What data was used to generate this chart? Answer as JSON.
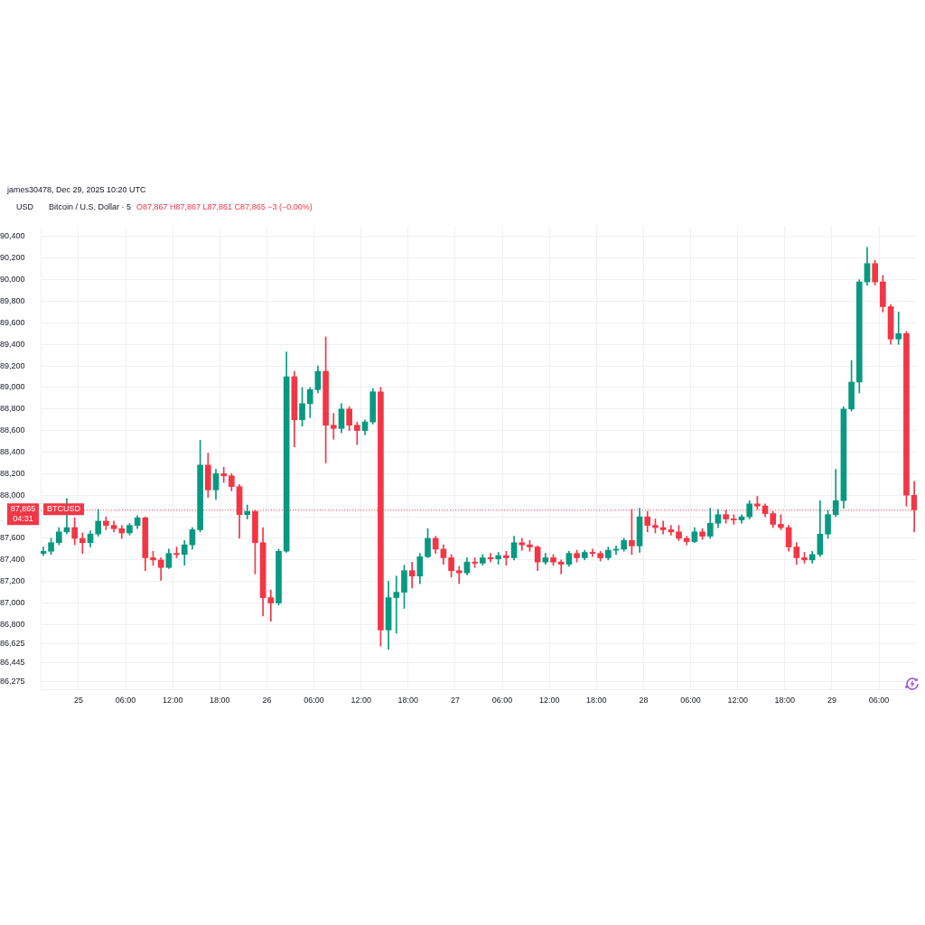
{
  "chart_data": {
    "type": "candlestick",
    "title": "Bitcoin / U.S. Dollar · 5",
    "ylabel": "USD",
    "annotations": [
      "james30478, Dec 29, 2025 10:20 UTC",
      "O87,867 H87,867 L87,861 C87,865 −3 (−0.00%)",
      "87,865",
      "04:31"
    ],
    "x": [
      "2025-12-24T19:30",
      "2025-12-24T20:30",
      "2025-12-24T21:30",
      "2025-12-24T22:30",
      "2025-12-24T23:30",
      "2025-12-25T00:30",
      "2025-12-25T01:30",
      "2025-12-25T02:30",
      "2025-12-25T03:30",
      "2025-12-25T04:30",
      "2025-12-25T05:30",
      "2025-12-25T06:30",
      "2025-12-25T07:30",
      "2025-12-25T08:30",
      "2025-12-25T09:30",
      "2025-12-25T10:30",
      "2025-12-25T11:30",
      "2025-12-25T12:30",
      "2025-12-25T13:30",
      "2025-12-25T14:30",
      "2025-12-25T15:30",
      "2025-12-25T16:30",
      "2025-12-25T17:30",
      "2025-12-25T18:30",
      "2025-12-25T19:30",
      "2025-12-25T20:30",
      "2025-12-25T21:30",
      "2025-12-25T22:30",
      "2025-12-25T23:30",
      "2025-12-26T00:30",
      "2025-12-26T01:30",
      "2025-12-26T02:30",
      "2025-12-26T03:30",
      "2025-12-26T04:30",
      "2025-12-26T05:30",
      "2025-12-26T06:30",
      "2025-12-26T07:30",
      "2025-12-26T08:30",
      "2025-12-26T09:30",
      "2025-12-26T10:30",
      "2025-12-26T11:30",
      "2025-12-26T12:30",
      "2025-12-26T13:30",
      "2025-12-26T14:30",
      "2025-12-26T15:30",
      "2025-12-26T16:30",
      "2025-12-26T17:30",
      "2025-12-26T18:30",
      "2025-12-26T19:30",
      "2025-12-26T20:30",
      "2025-12-26T21:30",
      "2025-12-26T22:30",
      "2025-12-26T23:30",
      "2025-12-27T00:30",
      "2025-12-27T01:30",
      "2025-12-27T02:30",
      "2025-12-27T03:30",
      "2025-12-27T04:30",
      "2025-12-27T05:30",
      "2025-12-27T06:30",
      "2025-12-27T07:30",
      "2025-12-27T08:30",
      "2025-12-27T09:30",
      "2025-12-27T10:30",
      "2025-12-27T11:30",
      "2025-12-27T12:30",
      "2025-12-27T13:30",
      "2025-12-27T14:30",
      "2025-12-27T15:30",
      "2025-12-27T16:30",
      "2025-12-27T17:30",
      "2025-12-27T18:30",
      "2025-12-27T19:30",
      "2025-12-27T20:30",
      "2025-12-27T21:30",
      "2025-12-27T22:30",
      "2025-12-27T23:30",
      "2025-12-28T00:30",
      "2025-12-28T01:30",
      "2025-12-28T02:30",
      "2025-12-28T03:30",
      "2025-12-28T04:30",
      "2025-12-28T05:30",
      "2025-12-28T06:30",
      "2025-12-28T07:30",
      "2025-12-28T08:30",
      "2025-12-28T09:30",
      "2025-12-28T10:30",
      "2025-12-28T11:30",
      "2025-12-28T12:30",
      "2025-12-28T13:30",
      "2025-12-28T14:30",
      "2025-12-28T15:30",
      "2025-12-28T16:30",
      "2025-12-28T17:30",
      "2025-12-28T18:30",
      "2025-12-28T19:30",
      "2025-12-28T20:30",
      "2025-12-28T21:30",
      "2025-12-28T22:30",
      "2025-12-28T23:30",
      "2025-12-29T00:30",
      "2025-12-29T01:30",
      "2025-12-29T02:30",
      "2025-12-29T03:30",
      "2025-12-29T04:30",
      "2025-12-29T05:30",
      "2025-12-29T06:30",
      "2025-12-29T07:30",
      "2025-12-29T08:30",
      "2025-12-29T09:30",
      "2025-12-29T10:30"
    ],
    "ohlc": [
      [
        87460,
        87520,
        87440,
        87480
      ],
      [
        87480,
        87600,
        87450,
        87560
      ],
      [
        87560,
        87700,
        87540,
        87660
      ],
      [
        87660,
        87970,
        87640,
        87700
      ],
      [
        87700,
        87790,
        87540,
        87600
      ],
      [
        87600,
        87650,
        87460,
        87560
      ],
      [
        87560,
        87670,
        87520,
        87640
      ],
      [
        87640,
        87870,
        87620,
        87760
      ],
      [
        87760,
        87800,
        87680,
        87720
      ],
      [
        87720,
        87760,
        87660,
        87690
      ],
      [
        87690,
        87720,
        87600,
        87650
      ],
      [
        87650,
        87740,
        87630,
        87720
      ],
      [
        87720,
        87810,
        87690,
        87790
      ],
      [
        87790,
        87800,
        87300,
        87420
      ],
      [
        87420,
        87480,
        87350,
        87400
      ],
      [
        87400,
        87420,
        87210,
        87330
      ],
      [
        87330,
        87500,
        87320,
        87460
      ],
      [
        87460,
        87520,
        87420,
        87450
      ],
      [
        87450,
        87580,
        87350,
        87540
      ],
      [
        87540,
        87700,
        87500,
        87680
      ],
      [
        87680,
        88510,
        87660,
        88280
      ],
      [
        88280,
        88390,
        87980,
        88050
      ],
      [
        88050,
        88240,
        87960,
        88200
      ],
      [
        88200,
        88260,
        88120,
        88180
      ],
      [
        88180,
        88200,
        88040,
        88080
      ],
      [
        88080,
        88100,
        87600,
        87820
      ],
      [
        87820,
        87910,
        87780,
        87850
      ],
      [
        87850,
        87860,
        87270,
        87560
      ],
      [
        87560,
        87700,
        86880,
        87050
      ],
      [
        87050,
        87120,
        86830,
        87000
      ],
      [
        87000,
        87500,
        86980,
        87480
      ],
      [
        87480,
        89330,
        87470,
        89100
      ],
      [
        89100,
        89150,
        88450,
        88700
      ],
      [
        88700,
        89000,
        88640,
        88850
      ],
      [
        88850,
        89000,
        88720,
        88980
      ],
      [
        88980,
        89200,
        88950,
        89150
      ],
      [
        89150,
        89470,
        88300,
        88650
      ],
      [
        88650,
        88760,
        88520,
        88620
      ],
      [
        88620,
        88850,
        88580,
        88800
      ],
      [
        88800,
        88820,
        88600,
        88650
      ],
      [
        88650,
        88680,
        88470,
        88600
      ],
      [
        88600,
        88700,
        88560,
        88680
      ],
      [
        88680,
        88990,
        88660,
        88960
      ],
      [
        88960,
        89000,
        86600,
        86750
      ],
      [
        86750,
        87200,
        86570,
        87050
      ],
      [
        87050,
        87250,
        86720,
        87100
      ],
      [
        87100,
        87350,
        86950,
        87300
      ],
      [
        87300,
        87380,
        87140,
        87250
      ],
      [
        87250,
        87460,
        87180,
        87430
      ],
      [
        87430,
        87690,
        87420,
        87600
      ],
      [
        87600,
        87620,
        87460,
        87500
      ],
      [
        87500,
        87540,
        87360,
        87420
      ],
      [
        87420,
        87450,
        87240,
        87300
      ],
      [
        87300,
        87340,
        87180,
        87280
      ],
      [
        87280,
        87420,
        87260,
        87380
      ],
      [
        87380,
        87420,
        87330,
        87370
      ],
      [
        87370,
        87450,
        87350,
        87420
      ],
      [
        87420,
        87460,
        87380,
        87410
      ],
      [
        87410,
        87470,
        87360,
        87440
      ],
      [
        87440,
        87480,
        87350,
        87420
      ],
      [
        87420,
        87620,
        87400,
        87560
      ],
      [
        87560,
        87600,
        87490,
        87540
      ],
      [
        87540,
        87580,
        87480,
        87520
      ],
      [
        87520,
        87530,
        87300,
        87380
      ],
      [
        87380,
        87460,
        87360,
        87420
      ],
      [
        87420,
        87450,
        87350,
        87380
      ],
      [
        87380,
        87400,
        87270,
        87360
      ],
      [
        87360,
        87480,
        87340,
        87460
      ],
      [
        87460,
        87490,
        87380,
        87420
      ],
      [
        87420,
        87490,
        87400,
        87470
      ],
      [
        87470,
        87500,
        87430,
        87460
      ],
      [
        87460,
        87480,
        87390,
        87420
      ],
      [
        87420,
        87520,
        87400,
        87490
      ],
      [
        87490,
        87530,
        87450,
        87500
      ],
      [
        87500,
        87600,
        87480,
        87580
      ],
      [
        87580,
        87870,
        87450,
        87530
      ],
      [
        87530,
        87880,
        87470,
        87800
      ],
      [
        87800,
        87850,
        87660,
        87720
      ],
      [
        87720,
        87780,
        87650,
        87700
      ],
      [
        87700,
        87760,
        87640,
        87680
      ],
      [
        87680,
        87720,
        87630,
        87660
      ],
      [
        87660,
        87720,
        87580,
        87600
      ],
      [
        87600,
        87620,
        87540,
        87570
      ],
      [
        87570,
        87700,
        87560,
        87660
      ],
      [
        87660,
        87690,
        87590,
        87620
      ],
      [
        87620,
        87880,
        87600,
        87740
      ],
      [
        87740,
        87870,
        87700,
        87820
      ],
      [
        87820,
        87860,
        87740,
        87780
      ],
      [
        87780,
        87820,
        87730,
        87770
      ],
      [
        87770,
        87820,
        87740,
        87800
      ],
      [
        87800,
        87950,
        87780,
        87920
      ],
      [
        87920,
        87990,
        87870,
        87900
      ],
      [
        87900,
        87920,
        87800,
        87830
      ],
      [
        87830,
        87850,
        87700,
        87730
      ],
      [
        87730,
        87820,
        87680,
        87700
      ],
      [
        87700,
        87720,
        87480,
        87520
      ],
      [
        87520,
        87560,
        87360,
        87420
      ],
      [
        87420,
        87470,
        87370,
        87400
      ],
      [
        87400,
        87480,
        87370,
        87450
      ],
      [
        87450,
        87950,
        87430,
        87640
      ],
      [
        87640,
        87860,
        87600,
        87820
      ],
      [
        87820,
        88240,
        87800,
        87950
      ],
      [
        87950,
        88820,
        87880,
        88800
      ],
      [
        88800,
        89250,
        88780,
        89050
      ],
      [
        89050,
        90000,
        88950,
        89980
      ],
      [
        89980,
        90300,
        89950,
        90150
      ],
      [
        90150,
        90180,
        89950,
        89980
      ],
      [
        89980,
        90040,
        89700,
        89750
      ],
      [
        89750,
        89770,
        89400,
        89450
      ],
      [
        89450,
        89700,
        89400,
        89500
      ],
      [
        89500,
        89520,
        87900,
        88000
      ],
      [
        88000,
        88130,
        87660,
        87865
      ]
    ],
    "colors": [
      "#089981",
      "#089981",
      "#089981",
      "#089981",
      "#f23645",
      "#f23645",
      "#089981",
      "#089981",
      "#f23645",
      "#f23645",
      "#f23645",
      "#089981",
      "#089981",
      "#f23645",
      "#f23645",
      "#f23645",
      "#089981",
      "#f23645",
      "#089981",
      "#089981",
      "#089981",
      "#f23645",
      "#089981",
      "#f23645",
      "#f23645",
      "#f23645",
      "#089981",
      "#f23645",
      "#f23645",
      "#f23645",
      "#089981",
      "#089981",
      "#f23645",
      "#089981",
      "#089981",
      "#089981",
      "#f23645",
      "#f23645",
      "#089981",
      "#f23645",
      "#f23645",
      "#089981",
      "#089981",
      "#f23645",
      "#089981",
      "#089981",
      "#089981",
      "#f23645",
      "#089981",
      "#089981",
      "#f23645",
      "#f23645",
      "#f23645",
      "#f23645",
      "#089981",
      "#f23645",
      "#089981",
      "#f23645",
      "#089981",
      "#f23645",
      "#089981",
      "#f23645",
      "#f23645",
      "#f23645",
      "#089981",
      "#f23645",
      "#f23645",
      "#089981",
      "#f23645",
      "#089981",
      "#f23645",
      "#f23645",
      "#089981",
      "#089981",
      "#089981",
      "#f23645",
      "#089981",
      "#f23645",
      "#f23645",
      "#f23645",
      "#f23645",
      "#f23645",
      "#f23645",
      "#089981",
      "#f23645",
      "#089981",
      "#089981",
      "#f23645",
      "#f23645",
      "#089981",
      "#089981",
      "#f23645",
      "#f23645",
      "#f23645",
      "#f23645",
      "#f23645",
      "#f23645",
      "#f23645",
      "#089981",
      "#089981",
      "#089981",
      "#089981",
      "#089981",
      "#089981",
      "#089981",
      "#089981",
      "#f23645",
      "#f23645",
      "#f23645",
      "#089981",
      "#f23645",
      "#f23645"
    ],
    "xlim": [
      "2025-12-24T19:10",
      "2025-12-29T10:50"
    ],
    "xticks": [
      {
        "value": "2025-12-25T00:00",
        "label": "25"
      },
      {
        "value": "2025-12-25T06:00",
        "label": "06:00"
      },
      {
        "value": "2025-12-25T12:00",
        "label": "12:00"
      },
      {
        "value": "2025-12-25T18:00",
        "label": "18:00"
      },
      {
        "value": "2025-12-26T00:00",
        "label": "26"
      },
      {
        "value": "2025-12-26T06:00",
        "label": "06:00"
      },
      {
        "value": "2025-12-26T12:00",
        "label": "12:00"
      },
      {
        "value": "2025-12-26T18:00",
        "label": "18:00"
      },
      {
        "value": "2025-12-27T00:00",
        "label": "27"
      },
      {
        "value": "2025-12-27T06:00",
        "label": "06:00"
      },
      {
        "value": "2025-12-27T12:00",
        "label": "12:00"
      },
      {
        "value": "2025-12-27T18:00",
        "label": "18:00"
      },
      {
        "value": "2025-12-28T00:00",
        "label": "28"
      },
      {
        "value": "2025-12-28T06:00",
        "label": "06:00"
      },
      {
        "value": "2025-12-28T12:00",
        "label": "12:00"
      },
      {
        "value": "2025-12-28T18:00",
        "label": "18:00"
      },
      {
        "value": "2025-12-29T00:00",
        "label": "29"
      },
      {
        "value": "2025-12-29T06:00",
        "label": "06:00"
      }
    ],
    "ylim": [
      86200,
      90500
    ],
    "yticks": [
      {
        "value": 86275,
        "label": "86,275"
      },
      {
        "value": 86445,
        "label": "86,445"
      },
      {
        "value": 86625,
        "label": "86,625"
      },
      {
        "value": 86800,
        "label": "86,800"
      },
      {
        "value": 87000,
        "label": "87,000"
      },
      {
        "value": 87200,
        "label": "87,200"
      },
      {
        "value": 87400,
        "label": "87,400"
      },
      {
        "value": 87600,
        "label": "87,600"
      },
      {
        "value": 87800,
        "label": null
      },
      {
        "value": 88000,
        "label": "88,000"
      },
      {
        "value": 88200,
        "label": "88,200"
      },
      {
        "value": 88400,
        "label": "88,400"
      },
      {
        "value": 88600,
        "label": "88,600"
      },
      {
        "value": 88800,
        "label": "88,800"
      },
      {
        "value": 89000,
        "label": "89,000"
      },
      {
        "value": 89200,
        "label": "89,200"
      },
      {
        "value": 89400,
        "label": "89,400"
      },
      {
        "value": 89600,
        "label": "89,600"
      },
      {
        "value": 89800,
        "label": "89,800"
      },
      {
        "value": 90000,
        "label": "90,000"
      },
      {
        "value": 90200,
        "label": "90,200"
      },
      {
        "value": 90400,
        "label": "90,400"
      }
    ],
    "grid": true,
    "ref_lines": [
      {
        "axis": "y",
        "value": 87865,
        "label": "BTCUSD",
        "color": "#f23645",
        "line_style": "dotted"
      }
    ]
  }
}
